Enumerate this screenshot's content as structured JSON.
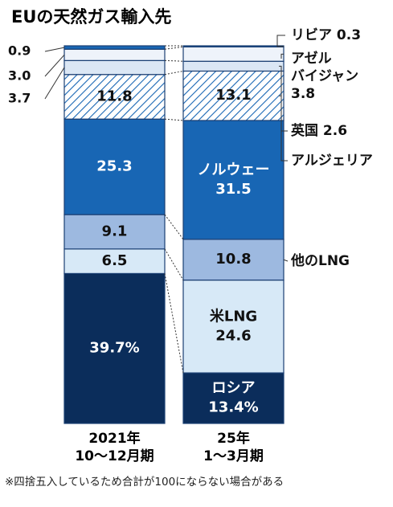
{
  "chart_data": {
    "type": "bar",
    "stacked": true,
    "orientation": "vertical",
    "title": "EUの天然ガス輸入先",
    "unit": "%",
    "categories": [
      "2021年\n10〜12月期",
      "25年\n1〜3月期"
    ],
    "series": [
      {
        "name": "ロシア",
        "values": [
          39.7,
          13.4
        ],
        "color": "#0b2d5b"
      },
      {
        "name": "米LNG",
        "values": [
          6.5,
          24.6
        ],
        "color": "#d7e9f7"
      },
      {
        "name": "他のLNG",
        "values": [
          9.1,
          10.8
        ],
        "color": "#9db9e0"
      },
      {
        "name": "ノルウェー",
        "values": [
          25.3,
          31.5
        ],
        "color": "#1866b4"
      },
      {
        "name": "アルジェリア",
        "values": [
          11.8,
          13.1
        ],
        "color": "#ffffff",
        "pattern": "hatch"
      },
      {
        "name": "英国",
        "values": [
          3.7,
          2.6
        ],
        "color": "#dbe7f5"
      },
      {
        "name": "アゼルバイジャン",
        "values": [
          3.0,
          3.8
        ],
        "color": "#eef3fa"
      },
      {
        "name": "リビア",
        "values": [
          0.9,
          0.3
        ],
        "color": "#1866b4"
      }
    ],
    "data_labels": {
      "ロシア": [
        "39.7%",
        "13.4%"
      ],
      "米LNG": [
        "6.5",
        "24.6"
      ],
      "他のLNG": [
        "9.1",
        "10.8"
      ],
      "ノルウェー": [
        "25.3",
        "31.5"
      ],
      "アルジェリア": [
        "11.8",
        "13.1"
      ],
      "英国": [
        "3.7",
        ""
      ],
      "アゼルバイジャン": [
        "3.0",
        ""
      ],
      "リビア": [
        "0.9",
        ""
      ]
    },
    "inner_labels": {
      "ロシア": "ロシア",
      "米LNG": "米LNG",
      "ノルウェー": "ノルウェー"
    },
    "legend_labels": [
      {
        "series": "リビア",
        "text": "リビア 0.3"
      },
      {
        "series": "アゼルバイジャン",
        "text": "アゼル\nバイジャン\n3.8"
      },
      {
        "series": "英国",
        "text": "英国 2.6"
      },
      {
        "series": "アルジェリア",
        "text": "アルジェリア"
      },
      {
        "series": "他のLNG",
        "text": "他のLNG"
      }
    ],
    "footnote": "※四捨五入しているため合計が100にならない場合がある"
  }
}
